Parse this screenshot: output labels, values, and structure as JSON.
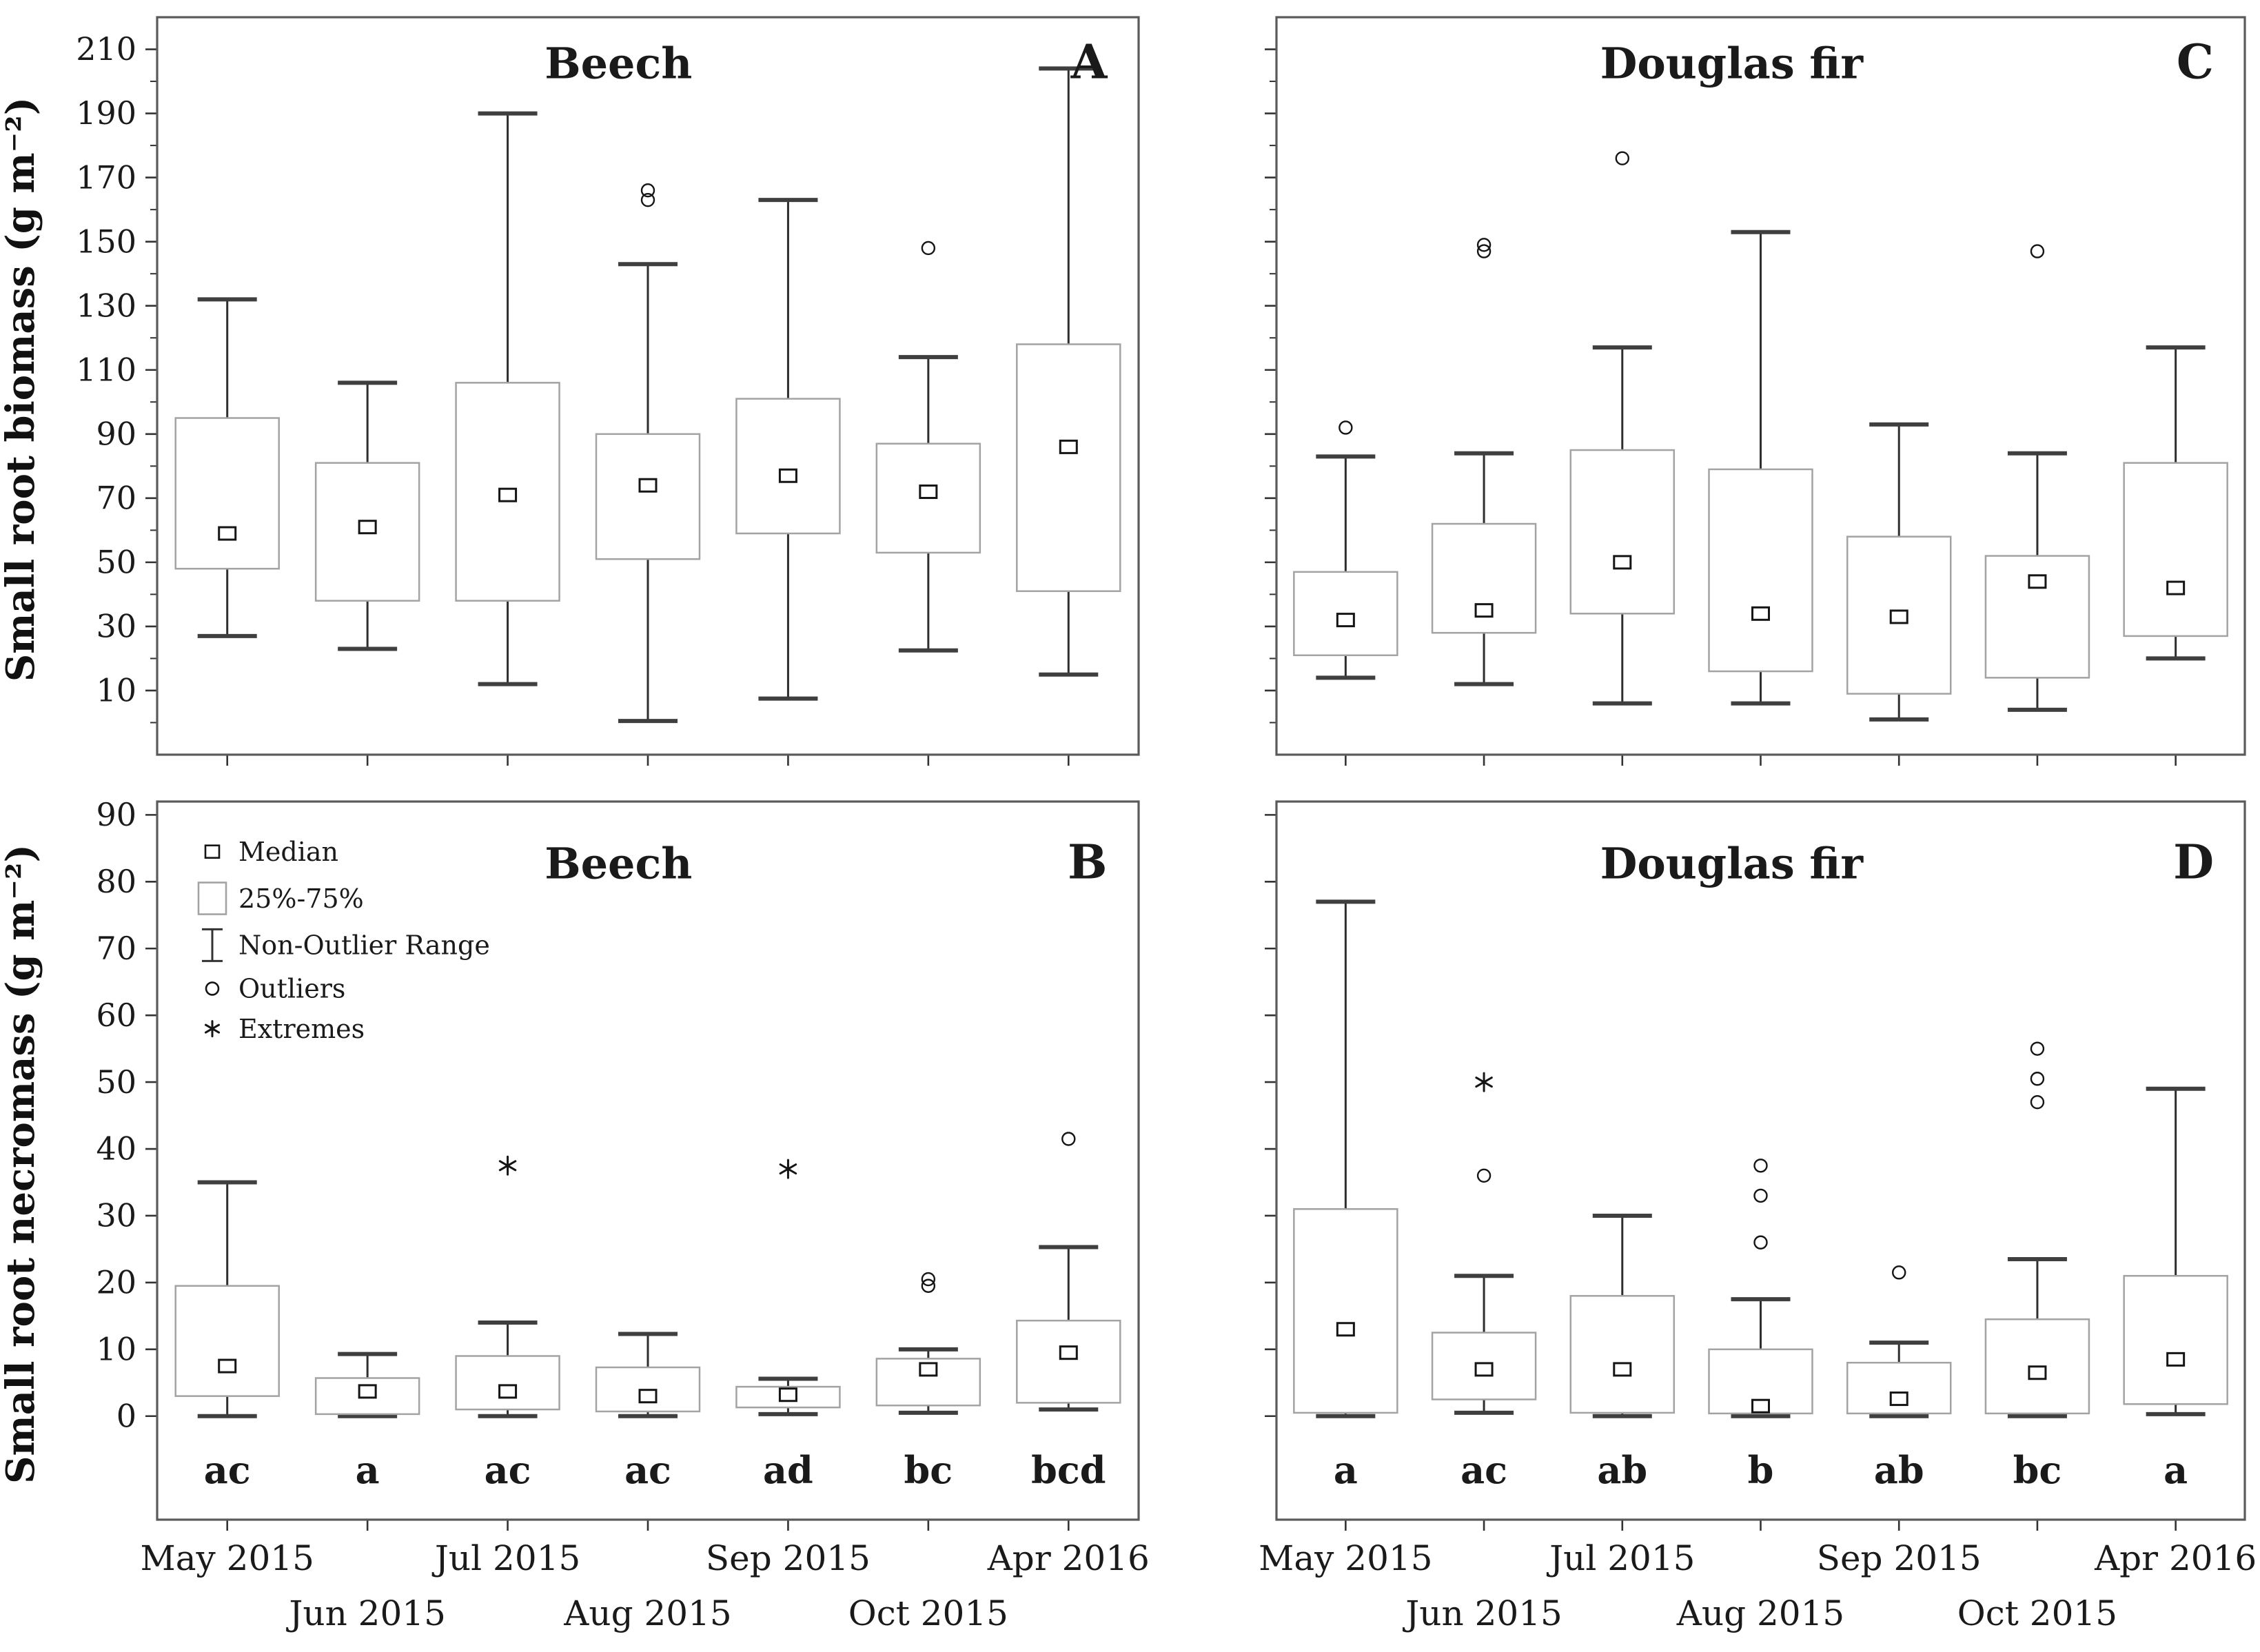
{
  "figure": {
    "background": "#ffffff",
    "ink": "#1a1a1a",
    "panel_border_color": "#5a5a5a",
    "box_stroke_color": "#a3a3a3",
    "whisker_color": "#2e2e2e",
    "cap_color": "#3f3f3f",
    "marker_color": "#151515"
  },
  "y_axis_titles": {
    "biomass": "Small root biomass (g m⁻²)",
    "necromass": "Small root necromass (g m⁻²)"
  },
  "x_tick_labels": {
    "row1": [
      "May 2015",
      "Jul 2015",
      "Sep 2015",
      "Apr 2016"
    ],
    "row2": [
      "Jun 2015",
      "Aug 2015",
      "Oct 2015"
    ]
  },
  "legend": {
    "items": [
      {
        "symbol": "median-square",
        "label": "Median"
      },
      {
        "symbol": "box",
        "label": "25%-75%"
      },
      {
        "symbol": "whisker",
        "label": "Non-Outlier Range"
      },
      {
        "symbol": "circle",
        "label": "Outliers"
      },
      {
        "symbol": "asterisk",
        "label": "Extremes"
      }
    ]
  },
  "chart_data": [
    {
      "id": "A",
      "type": "box",
      "title": "Beech",
      "corner_label": "A",
      "ylabel": "Small root biomass (g m⁻²)",
      "axis": {
        "ymin_draw": -10,
        "ymax_draw": 220,
        "tick_step_minor": 10,
        "tick_step_major": 20,
        "label_min": 10,
        "label_max": 210,
        "labels_visible": true,
        "style": "biomass"
      },
      "categories": [
        "May 2015",
        "Jun 2015",
        "Jul 2015",
        "Aug 2015",
        "Sep 2015",
        "Oct 2015",
        "Apr 2016"
      ],
      "show_legend": false,
      "boxes": [
        {
          "category": "May 2015",
          "low": 27,
          "q1": 48,
          "median": 59,
          "q3": 95,
          "high": 132,
          "outliers": [],
          "extremes": [],
          "letter": null
        },
        {
          "category": "Jun 2015",
          "low": 23,
          "q1": 38,
          "median": 61,
          "q3": 81,
          "high": 106,
          "outliers": [],
          "extremes": [],
          "letter": null
        },
        {
          "category": "Jul 2015",
          "low": 12,
          "q1": 38,
          "median": 71,
          "q3": 106,
          "high": 190,
          "outliers": [],
          "extremes": [],
          "letter": null
        },
        {
          "category": "Aug 2015",
          "low": 0.5,
          "q1": 51,
          "median": 74,
          "q3": 90,
          "high": 143,
          "outliers": [
            163,
            166
          ],
          "extremes": [],
          "letter": null
        },
        {
          "category": "Sep 2015",
          "low": 7.5,
          "q1": 59,
          "median": 77,
          "q3": 101,
          "high": 163,
          "outliers": [],
          "extremes": [],
          "letter": null
        },
        {
          "category": "Oct 2015",
          "low": 22.5,
          "q1": 53,
          "median": 72,
          "q3": 87,
          "high": 114,
          "outliers": [
            148
          ],
          "extremes": [],
          "letter": null
        },
        {
          "category": "Apr 2016",
          "low": 15,
          "q1": 41,
          "median": 86,
          "q3": 118,
          "high": 204,
          "outliers": [],
          "extremes": [],
          "letter": null
        }
      ]
    },
    {
      "id": "B",
      "type": "box",
      "title": "Beech",
      "corner_label": "B",
      "ylabel": "Small root necromass (g m⁻²)",
      "axis": {
        "ymin_draw": -15.5,
        "ymax_draw": 92,
        "tick_step_minor": 10,
        "tick_step_major": 10,
        "label_min": 0,
        "label_max": 90,
        "labels_visible": true,
        "style": "necromass"
      },
      "categories": [
        "May 2015",
        "Jun 2015",
        "Jul 2015",
        "Aug 2015",
        "Sep 2015",
        "Oct 2015",
        "Apr 2016"
      ],
      "show_legend": true,
      "boxes": [
        {
          "category": "May 2015",
          "low": 0,
          "q1": 3,
          "median": 7.5,
          "q3": 19.5,
          "high": 35,
          "outliers": [],
          "extremes": [],
          "letter": "ac"
        },
        {
          "category": "Jun 2015",
          "low": 0,
          "q1": 0.3,
          "median": 3.7,
          "q3": 5.7,
          "high": 9.3,
          "outliers": [],
          "extremes": [],
          "letter": "a"
        },
        {
          "category": "Jul 2015",
          "low": 0,
          "q1": 1,
          "median": 3.7,
          "q3": 9,
          "high": 14,
          "outliers": [],
          "extremes": [
            37.5
          ],
          "letter": "ac"
        },
        {
          "category": "Aug 2015",
          "low": 0,
          "q1": 0.7,
          "median": 3,
          "q3": 7.3,
          "high": 12.3,
          "outliers": [],
          "extremes": [],
          "letter": "ac"
        },
        {
          "category": "Sep 2015",
          "low": 0.3,
          "q1": 1.3,
          "median": 3.2,
          "q3": 4.4,
          "high": 5.6,
          "outliers": [],
          "extremes": [
            37
          ],
          "letter": "ad"
        },
        {
          "category": "Oct 2015",
          "low": 0.5,
          "q1": 1.6,
          "median": 7,
          "q3": 8.6,
          "high": 10,
          "outliers": [
            19.5,
            20.5
          ],
          "extremes": [],
          "letter": "bc"
        },
        {
          "category": "Apr 2016",
          "low": 1,
          "q1": 2,
          "median": 9.5,
          "q3": 14.3,
          "high": 25.3,
          "outliers": [
            41.5
          ],
          "extremes": [],
          "letter": "bcd"
        }
      ]
    },
    {
      "id": "C",
      "type": "box",
      "title": "Douglas fir",
      "corner_label": "C",
      "ylabel": "Small root biomass (g m⁻²)",
      "axis": {
        "ymin_draw": -10,
        "ymax_draw": 220,
        "tick_step_minor": 10,
        "tick_step_major": 20,
        "label_min": 10,
        "label_max": 210,
        "labels_visible": false,
        "style": "biomass"
      },
      "categories": [
        "May 2015",
        "Jun 2015",
        "Jul 2015",
        "Aug 2015",
        "Sep 2015",
        "Oct 2015",
        "Apr 2016"
      ],
      "show_legend": false,
      "boxes": [
        {
          "category": "May 2015",
          "low": 14,
          "q1": 21,
          "median": 32,
          "q3": 47,
          "high": 83,
          "outliers": [
            92
          ],
          "extremes": [],
          "letter": null
        },
        {
          "category": "Jun 2015",
          "low": 12,
          "q1": 28,
          "median": 35,
          "q3": 62,
          "high": 84,
          "outliers": [
            147,
            149
          ],
          "extremes": [],
          "letter": null
        },
        {
          "category": "Jul 2015",
          "low": 6,
          "q1": 34,
          "median": 50,
          "q3": 85,
          "high": 117,
          "outliers": [
            176
          ],
          "extremes": [],
          "letter": null
        },
        {
          "category": "Aug 2015",
          "low": 6,
          "q1": 16,
          "median": 34,
          "q3": 79,
          "high": 153,
          "outliers": [],
          "extremes": [],
          "letter": null
        },
        {
          "category": "Sep 2015",
          "low": 1,
          "q1": 9,
          "median": 33,
          "q3": 58,
          "high": 93,
          "outliers": [],
          "extremes": [],
          "letter": null
        },
        {
          "category": "Oct 2015",
          "low": 4,
          "q1": 14,
          "median": 44,
          "q3": 52,
          "high": 84,
          "outliers": [
            147
          ],
          "extremes": [],
          "letter": null
        },
        {
          "category": "Apr 2016",
          "low": 20,
          "q1": 27,
          "median": 42,
          "q3": 81,
          "high": 117,
          "outliers": [],
          "extremes": [],
          "letter": null
        }
      ]
    },
    {
      "id": "D",
      "type": "box",
      "title": "Douglas fir",
      "corner_label": "D",
      "ylabel": "Small root necromass (g m⁻²)",
      "axis": {
        "ymin_draw": -15.5,
        "ymax_draw": 92,
        "tick_step_minor": 10,
        "tick_step_major": 10,
        "label_min": 0,
        "label_max": 90,
        "labels_visible": false,
        "style": "necromass"
      },
      "categories": [
        "May 2015",
        "Jun 2015",
        "Jul 2015",
        "Aug 2015",
        "Sep 2015",
        "Oct 2015",
        "Apr 2016"
      ],
      "show_legend": false,
      "boxes": [
        {
          "category": "May 2015",
          "low": 0,
          "q1": 0.5,
          "median": 13,
          "q3": 31,
          "high": 77,
          "outliers": [],
          "extremes": [],
          "letter": "a"
        },
        {
          "category": "Jun 2015",
          "low": 0.5,
          "q1": 2.5,
          "median": 7,
          "q3": 12.5,
          "high": 21,
          "outliers": [
            36
          ],
          "extremes": [
            50
          ],
          "letter": "ac"
        },
        {
          "category": "Jul 2015",
          "low": 0,
          "q1": 0.5,
          "median": 7,
          "q3": 18,
          "high": 30,
          "outliers": [],
          "extremes": [],
          "letter": "ab"
        },
        {
          "category": "Aug 2015",
          "low": 0,
          "q1": 0.4,
          "median": 1.5,
          "q3": 10,
          "high": 17.5,
          "outliers": [
            26,
            33,
            37.5
          ],
          "extremes": [],
          "letter": "b"
        },
        {
          "category": "Sep 2015",
          "low": 0,
          "q1": 0.4,
          "median": 2.6,
          "q3": 8,
          "high": 11,
          "outliers": [
            21.5
          ],
          "extremes": [],
          "letter": "ab"
        },
        {
          "category": "Oct 2015",
          "low": 0,
          "q1": 0.4,
          "median": 6.5,
          "q3": 14.5,
          "high": 23.5,
          "outliers": [
            47,
            50.5,
            55
          ],
          "extremes": [],
          "letter": "bc"
        },
        {
          "category": "Apr 2016",
          "low": 0.3,
          "q1": 1.8,
          "median": 8.5,
          "q3": 21,
          "high": 49,
          "outliers": [],
          "extremes": [],
          "letter": "a"
        }
      ]
    }
  ]
}
